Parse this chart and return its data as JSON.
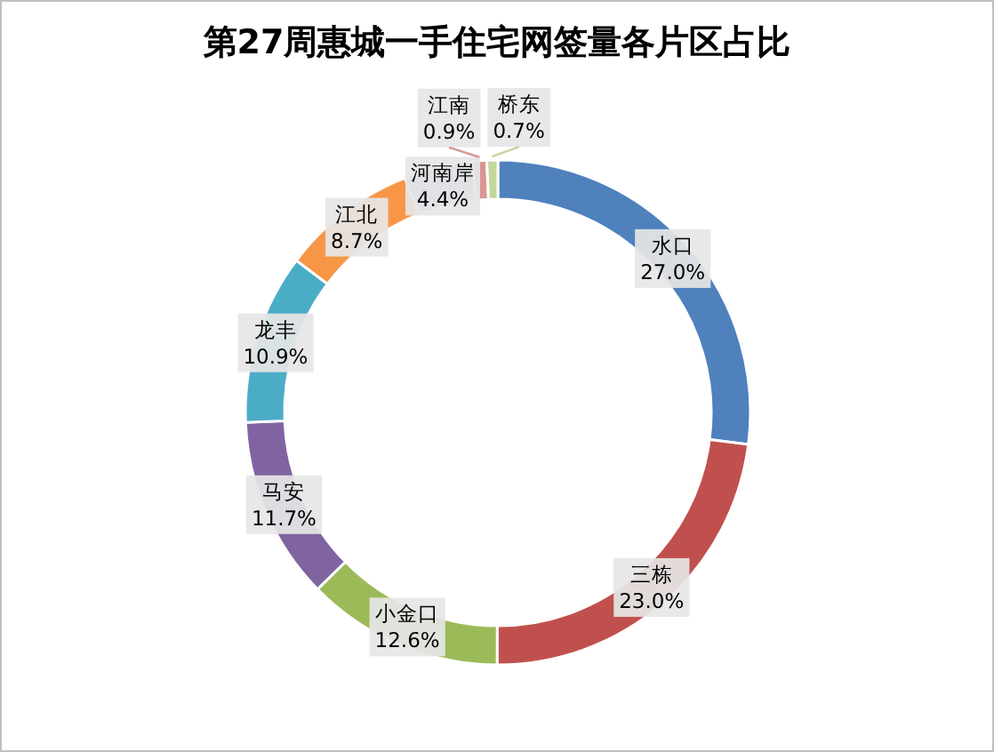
{
  "chart_data": {
    "type": "donut",
    "title": "第27周惠城一手住宅网签量各片区占比",
    "categories": [
      "水口",
      "三栋",
      "小金口",
      "马安",
      "龙丰",
      "江北",
      "河南岸",
      "江南",
      "桥东"
    ],
    "values": [
      27.0,
      23.0,
      12.6,
      11.7,
      10.9,
      8.7,
      4.4,
      0.9,
      0.7
    ],
    "value_labels": [
      "27.0%",
      "23.0%",
      "12.6%",
      "11.7%",
      "10.9%",
      "8.7%",
      "4.4%",
      "0.9%",
      "0.7%"
    ],
    "colors": [
      "#4f81bd",
      "#c0504d",
      "#9bbb59",
      "#8064a2",
      "#4bacc6",
      "#f79646",
      "#95b3d7",
      "#d99694",
      "#c3d69b"
    ]
  }
}
